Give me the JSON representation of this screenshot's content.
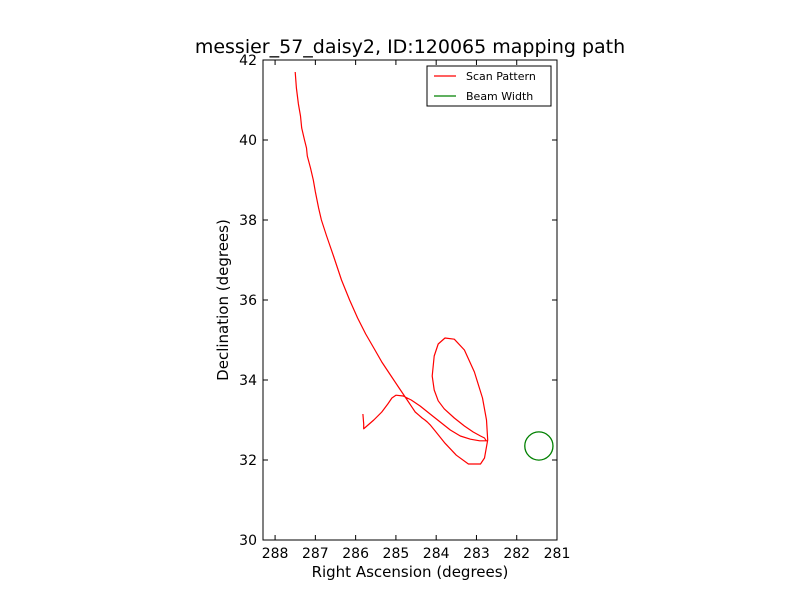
{
  "chart_data": {
    "type": "line",
    "title": "messier_57_daisy2, ID:120065 mapping path",
    "xlabel": "Right Ascension (degrees)",
    "ylabel": "Declination (degrees)",
    "xlim": [
      288.3,
      281.0
    ],
    "ylim": [
      30,
      42
    ],
    "x_inverted": true,
    "xticks": [
      288,
      287,
      286,
      285,
      284,
      283,
      282,
      281
    ],
    "yticks": [
      30,
      32,
      34,
      36,
      38,
      40,
      42
    ],
    "grid": false,
    "legend_position": "top-right",
    "series": [
      {
        "name": "Scan Pattern",
        "color": "#ff0000",
        "x": [
          287.5,
          287.47,
          287.42,
          287.37,
          287.34,
          287.27,
          287.22,
          287.2,
          287.12,
          287.05,
          287.0,
          286.92,
          286.85,
          286.72,
          286.55,
          286.35,
          286.15,
          285.95,
          285.75,
          285.55,
          285.35,
          285.12,
          284.92,
          284.72,
          284.6,
          284.52,
          284.43,
          284.35,
          284.28,
          284.22,
          284.15,
          284.02,
          283.78,
          283.5,
          283.2,
          282.9,
          282.8,
          282.72,
          282.75,
          282.85,
          283.05,
          283.3,
          283.55,
          283.78,
          283.95,
          284.05,
          284.1,
          284.05,
          283.95,
          283.8,
          283.55,
          283.3,
          283.08,
          282.9,
          282.8,
          282.77,
          282.75,
          282.92,
          283.15,
          283.4,
          283.65,
          283.9,
          284.15,
          284.4,
          284.62,
          284.82,
          285.0,
          285.1,
          285.2,
          285.35,
          285.55,
          285.72,
          285.8,
          285.8,
          285.82
        ],
        "y": [
          41.7,
          41.3,
          40.9,
          40.6,
          40.3,
          40.0,
          39.8,
          39.6,
          39.3,
          39.0,
          38.7,
          38.3,
          38.0,
          37.6,
          37.1,
          36.5,
          36.0,
          35.55,
          35.15,
          34.8,
          34.45,
          34.1,
          33.8,
          33.5,
          33.32,
          33.2,
          33.12,
          33.05,
          33.0,
          32.95,
          32.88,
          32.72,
          32.42,
          32.12,
          31.9,
          31.9,
          32.05,
          32.5,
          33.0,
          33.55,
          34.2,
          34.75,
          35.02,
          35.05,
          34.9,
          34.6,
          34.1,
          33.75,
          33.48,
          33.28,
          33.05,
          32.85,
          32.7,
          32.6,
          32.55,
          32.5,
          32.48,
          32.48,
          32.52,
          32.6,
          32.75,
          32.95,
          33.15,
          33.35,
          33.5,
          33.6,
          33.62,
          33.55,
          33.4,
          33.2,
          33.0,
          32.85,
          32.78,
          32.9,
          33.15
        ]
      },
      {
        "name": "Beam Width",
        "color": "#008000",
        "center": [
          281.45,
          32.35
        ],
        "radius_deg": 0.35
      }
    ]
  }
}
